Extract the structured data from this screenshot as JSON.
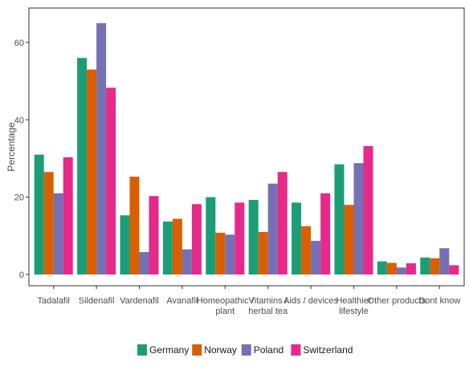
{
  "chart_data": {
    "type": "bar",
    "ylabel": "Percentage",
    "xlabel": "",
    "ylim": [
      0,
      66
    ],
    "yticks": [
      0,
      20,
      40,
      60
    ],
    "grid": false,
    "legend_position": "bottom",
    "categories": [
      "Tadalafil",
      "Sildenafil",
      "Vardenafil",
      "Avanafil",
      "Homeopathic / plant",
      "Vitamins / herbal tea",
      "Aids / devices",
      "Healthier lifestyle",
      "Other products",
      "Dont know"
    ],
    "category_lines": [
      [
        "Tadalafil"
      ],
      [
        "Sildenafil"
      ],
      [
        "Vardenafil"
      ],
      [
        "Avanafil"
      ],
      [
        "Homeopathic /",
        "plant"
      ],
      [
        "Vitamins /",
        "herbal tea"
      ],
      [
        "Aids / devices"
      ],
      [
        "Healthier",
        "lifestyle"
      ],
      [
        "Other products"
      ],
      [
        "Dont know"
      ]
    ],
    "series": [
      {
        "name": "Germany",
        "color": "#1b9e77",
        "values": [
          31,
          56,
          15.3,
          13.7,
          20,
          19.3,
          18.6,
          28.5,
          3.4,
          4.4
        ]
      },
      {
        "name": "Norway",
        "color": "#d95f02",
        "values": [
          26.5,
          53,
          25.3,
          14.4,
          10.8,
          11,
          12.5,
          18,
          3,
          4.2
        ]
      },
      {
        "name": "Poland",
        "color": "#7570b3",
        "values": [
          21,
          65,
          5.8,
          6.5,
          10.3,
          23.5,
          8.7,
          28.8,
          1.8,
          6.8
        ]
      },
      {
        "name": "Switzerland",
        "color": "#e7298a",
        "values": [
          30.3,
          48.3,
          20.3,
          18.2,
          18.6,
          26.5,
          21,
          33.2,
          2.9,
          2.4
        ]
      }
    ]
  }
}
